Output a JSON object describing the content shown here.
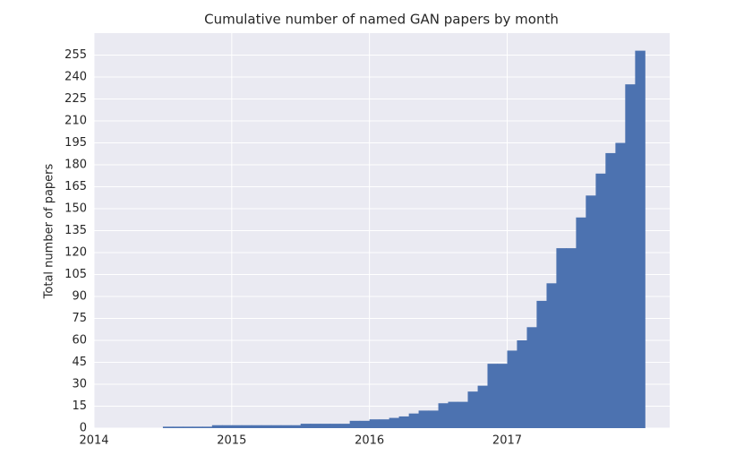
{
  "chart_data": {
    "type": "histogram",
    "title": "Cumulative number of named GAN papers by month",
    "ylabel": "Total number of papers",
    "bins": [
      2014,
      2014.071,
      2014.143,
      2014.214,
      2014.286,
      2014.357,
      2014.429,
      2014.5,
      2014.571,
      2014.643,
      2014.714,
      2014.786,
      2014.857,
      2014.929,
      2015,
      2015.071,
      2015.143,
      2015.214,
      2015.286,
      2015.357,
      2015.429,
      2015.5,
      2015.571,
      2015.643,
      2015.714,
      2015.786,
      2015.857,
      2015.929,
      2016,
      2016.071,
      2016.143,
      2016.214,
      2016.286,
      2016.357,
      2016.429,
      2016.5,
      2016.571,
      2016.643,
      2016.714,
      2016.786,
      2016.857,
      2016.929,
      2017,
      2017.071,
      2017.143,
      2017.214,
      2017.286,
      2017.357,
      2017.429,
      2017.5,
      2017.571,
      2017.643,
      2017.714,
      2017.786,
      2017.857,
      2017.929,
      2018
    ],
    "values": [
      0,
      0,
      0,
      0,
      0,
      0,
      0,
      1,
      1,
      1,
      1,
      1,
      2,
      2,
      2,
      2,
      2,
      2,
      2,
      2,
      2,
      3,
      3,
      3,
      3,
      3,
      5,
      5,
      6,
      6,
      7,
      8,
      10,
      12,
      12,
      17,
      18,
      18,
      25,
      29,
      44,
      44,
      53,
      60,
      69,
      87,
      99,
      123,
      123,
      144,
      159,
      174,
      188,
      195,
      235,
      258
    ],
    "color": "#4c72b0",
    "xlim": [
      2014,
      2018.18
    ],
    "xticks": [
      2014,
      2015,
      2016,
      2017
    ],
    "ylim": [
      0,
      270
    ],
    "yticks": [
      0,
      15,
      30,
      45,
      60,
      75,
      90,
      105,
      120,
      135,
      150,
      165,
      180,
      195,
      210,
      225,
      240,
      255
    ],
    "grid": true
  }
}
